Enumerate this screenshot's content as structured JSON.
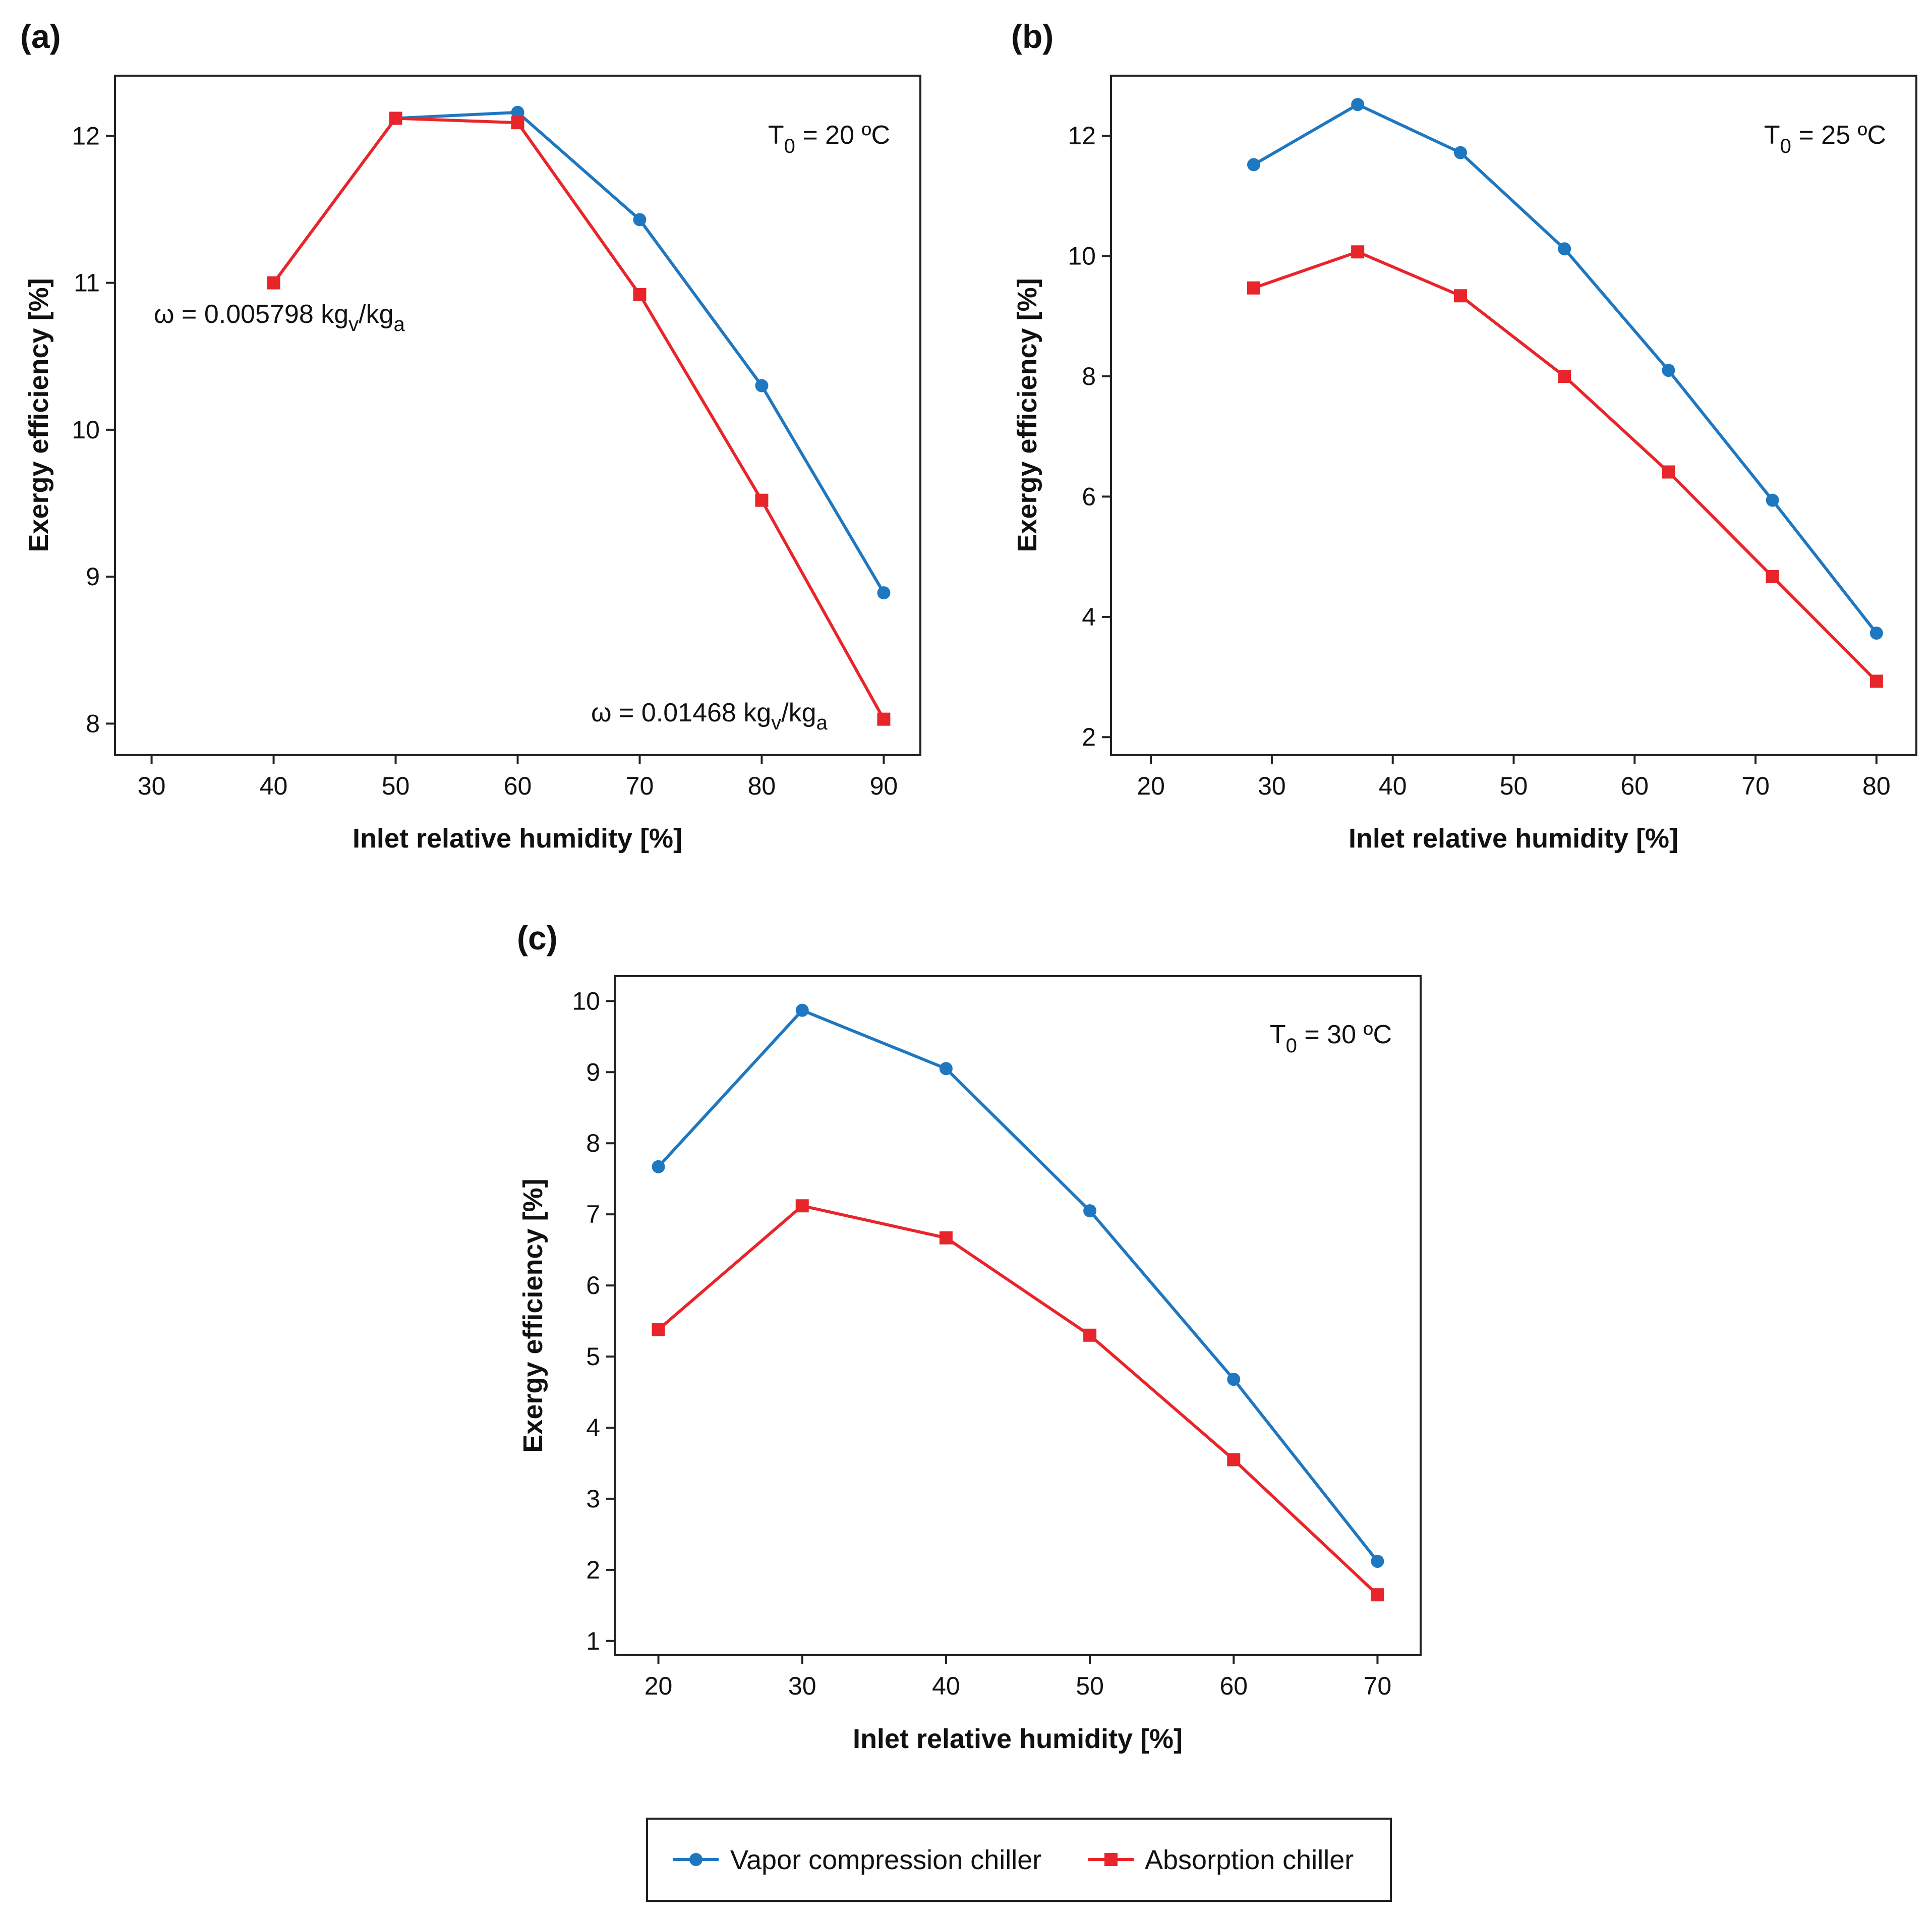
{
  "colors": {
    "vapor": "#1f77c0",
    "absorption": "#e8252b",
    "axis": "#222222"
  },
  "legend": {
    "vapor_label": "Vapor compression chiller",
    "absorption_label": "Absorption chiller"
  },
  "chart_data": [
    {
      "id": "a",
      "type": "line",
      "panel_label": "(a)",
      "xlabel": "Inlet relative humidity [%]",
      "ylabel": "Exergy efficiency [%]",
      "xlim": [
        27,
        93
      ],
      "ylim": [
        7.785,
        12.41
      ],
      "xticks": [
        30,
        40,
        50,
        60,
        70,
        80,
        90
      ],
      "yticks": [
        8,
        9,
        10,
        11,
        12
      ],
      "annotation": {
        "text": "T",
        "sub": "0",
        "rest": " = 20 ºC"
      },
      "omega_low": {
        "text": "ω = 0.005798 kg",
        "sub1": "v",
        "mid": "/kg",
        "sub2": "a"
      },
      "omega_high": {
        "text": "ω = 0.01468 kg",
        "sub1": "v",
        "mid": "/kg",
        "sub2": "a"
      },
      "series": [
        {
          "name": "Vapor compression chiller",
          "marker": "circle",
          "x": [
            50,
            60,
            70,
            80,
            90
          ],
          "values": [
            12.12,
            12.16,
            11.43,
            10.3,
            8.89
          ]
        },
        {
          "name": "Absorption chiller",
          "marker": "square",
          "x": [
            40,
            50,
            60,
            70,
            80,
            90
          ],
          "values": [
            11.0,
            12.12,
            12.09,
            10.92,
            9.52,
            8.03
          ]
        }
      ]
    },
    {
      "id": "b",
      "type": "line",
      "panel_label": "(b)",
      "xlabel": "Inlet relative humidity [%]",
      "ylabel": "Exergy efficiency [%]",
      "xlim": [
        16.7,
        83.3
      ],
      "ylim": [
        1.7,
        13.0
      ],
      "xticks": [
        20,
        30,
        40,
        50,
        60,
        70,
        80
      ],
      "yticks": [
        2,
        4,
        6,
        8,
        10,
        12
      ],
      "annotation": {
        "text": "T",
        "sub": "0",
        "rest": " = 25 ºC"
      },
      "series": [
        {
          "name": "Vapor compression chiller",
          "marker": "circle",
          "x": [
            28.5,
            37.1,
            45.6,
            54.2,
            62.8,
            71.4,
            80
          ],
          "values": [
            11.52,
            12.52,
            11.72,
            10.12,
            8.1,
            5.94,
            3.73
          ]
        },
        {
          "name": "Absorption chiller",
          "marker": "square",
          "x": [
            28.5,
            37.1,
            45.6,
            54.2,
            62.8,
            71.4,
            80
          ],
          "values": [
            9.47,
            10.07,
            9.34,
            8.0,
            6.41,
            4.67,
            2.93
          ]
        }
      ]
    },
    {
      "id": "c",
      "type": "line",
      "panel_label": "(c)",
      "xlabel": "Inlet relative humidity [%]",
      "ylabel": "Exergy efficiency [%]",
      "xlim": [
        17,
        73
      ],
      "ylim": [
        0.8,
        10.35
      ],
      "xticks": [
        20,
        30,
        40,
        50,
        60,
        70
      ],
      "yticks": [
        1,
        2,
        3,
        4,
        5,
        6,
        7,
        8,
        9,
        10
      ],
      "annotation": {
        "text": "T",
        "sub": "0",
        "rest": " = 30 ºC"
      },
      "series": [
        {
          "name": "Vapor compression chiller",
          "marker": "circle",
          "x": [
            20,
            30,
            40,
            50,
            60,
            70
          ],
          "values": [
            7.67,
            9.87,
            9.05,
            7.05,
            4.68,
            2.12
          ]
        },
        {
          "name": "Absorption chiller",
          "marker": "square",
          "x": [
            20,
            30,
            40,
            50,
            60,
            70
          ],
          "values": [
            5.38,
            7.12,
            6.67,
            5.3,
            3.55,
            1.65
          ]
        }
      ]
    }
  ]
}
